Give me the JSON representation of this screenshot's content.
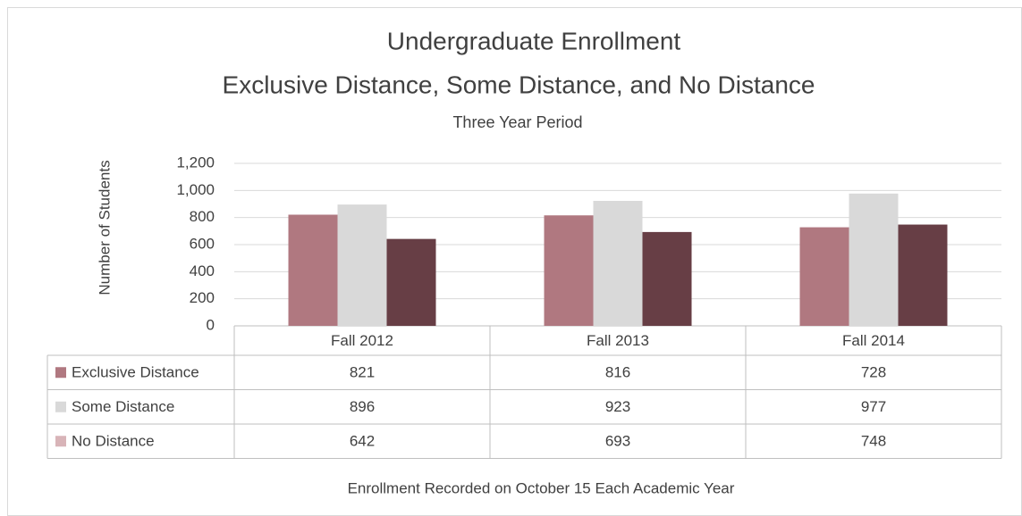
{
  "chart_data": {
    "type": "bar",
    "title": "Undergraduate Enrollment",
    "subtitle": "Exclusive Distance, Some Distance, and No Distance",
    "subtitle2": "Three Year Period",
    "y_label": "Number of Students",
    "caption": "Enrollment Recorded on October 15 Each Academic Year",
    "categories": [
      "Fall 2012",
      "Fall 2013",
      "Fall 2014"
    ],
    "series": [
      {
        "name": "Exclusive Distance",
        "color": "#b07880",
        "legend_color": "#b07880",
        "values": [
          821,
          816,
          728
        ]
      },
      {
        "name": "Some Distance",
        "color": "#d9d9d9",
        "legend_color": "#d9d9d9",
        "values": [
          896,
          923,
          977
        ]
      },
      {
        "name": "No Distance",
        "color": "#673e45",
        "legend_color": "#d8b4b8",
        "values": [
          642,
          693,
          748
        ]
      }
    ],
    "ylim": [
      0,
      1200
    ],
    "yticks": [
      0,
      200,
      400,
      600,
      800,
      {
        "value": 1000,
        "label": "1,000"
      },
      {
        "value": 1200,
        "label": "1,200"
      }
    ],
    "grid": true
  }
}
